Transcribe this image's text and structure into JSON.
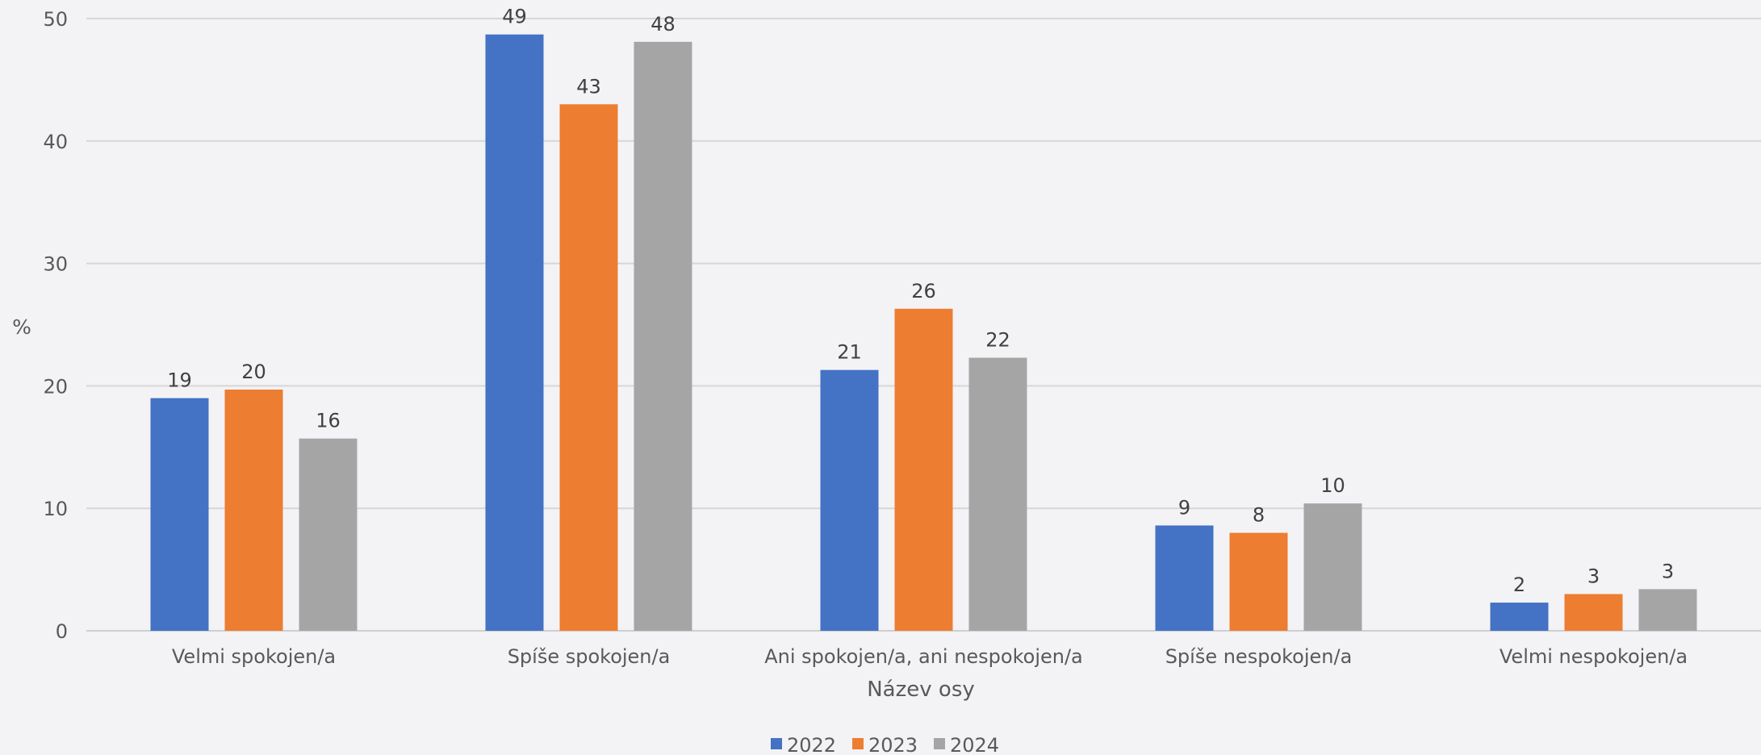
{
  "chart_data": {
    "type": "bar",
    "title": "",
    "xlabel": "Název osy",
    "ylabel": "%",
    "ylim": [
      0,
      50
    ],
    "yticks": [
      0,
      10,
      20,
      30,
      40,
      50
    ],
    "grid": true,
    "legend_position": "bottom",
    "categories": [
      "Velmi spokojen/a",
      "Spíše spokojen/a",
      "Ani spokojen/a, ani nespokojen/a",
      "Spíše nespokojen/a",
      "Velmi nespokojen/a"
    ],
    "series": [
      {
        "name": "2022",
        "color": "#4472c4",
        "values": [
          19,
          48.7,
          21.3,
          8.6,
          2.3
        ],
        "labels": [
          "19",
          "49",
          "21",
          "9",
          "2"
        ]
      },
      {
        "name": "2023",
        "color": "#ed7d31",
        "values": [
          19.7,
          43,
          26.3,
          8,
          3
        ],
        "labels": [
          "20",
          "43",
          "26",
          "8",
          "3"
        ]
      },
      {
        "name": "2024",
        "color": "#a5a5a5",
        "values": [
          15.7,
          48.1,
          22.3,
          10.4,
          3.4
        ],
        "labels": [
          "16",
          "48",
          "22",
          "10",
          "3"
        ]
      }
    ]
  }
}
